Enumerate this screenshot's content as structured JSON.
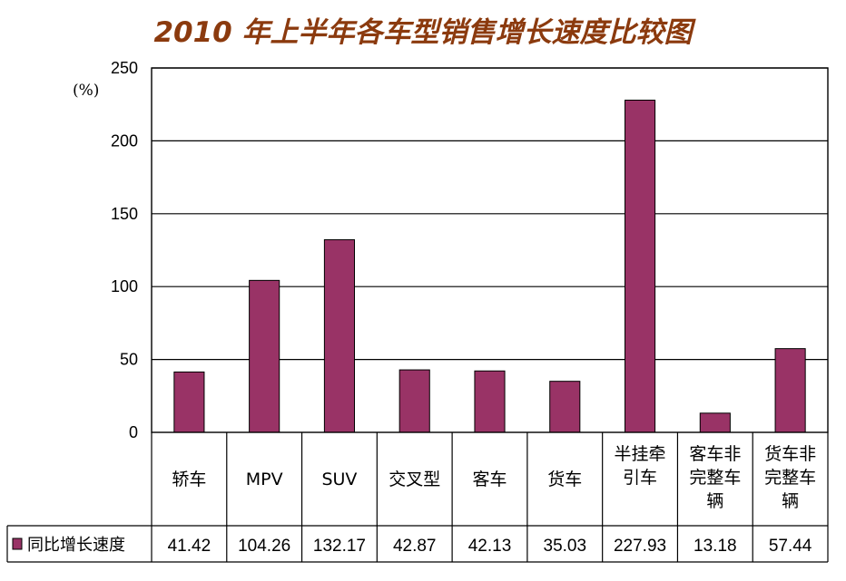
{
  "chart_data": {
    "type": "bar",
    "title": "2010 年上半年各车型销售增长速度比较图",
    "unit_label": "(%)",
    "categories": [
      [
        "轿车"
      ],
      [
        "MPV"
      ],
      [
        "SUV"
      ],
      [
        "交叉型"
      ],
      [
        "客车"
      ],
      [
        "货车"
      ],
      [
        "半挂牵",
        "引车"
      ],
      [
        "客车非",
        "完整车",
        "辆"
      ],
      [
        "货车非",
        "完整车",
        "辆"
      ]
    ],
    "series": [
      {
        "name": "同比增长速度",
        "color": "#993366",
        "values": [
          41.42,
          104.26,
          132.17,
          42.87,
          42.13,
          35.03,
          227.93,
          13.18,
          57.44
        ],
        "value_labels": [
          "41.42",
          "104.26",
          "132.17",
          "42.87",
          "42.13",
          "35.03",
          "227.93",
          "13.18",
          "57.44"
        ]
      }
    ],
    "ylim": [
      0,
      250
    ],
    "yticks": [
      0,
      50,
      100,
      150,
      200,
      250
    ],
    "grid": true,
    "legend": "data-table-left"
  }
}
